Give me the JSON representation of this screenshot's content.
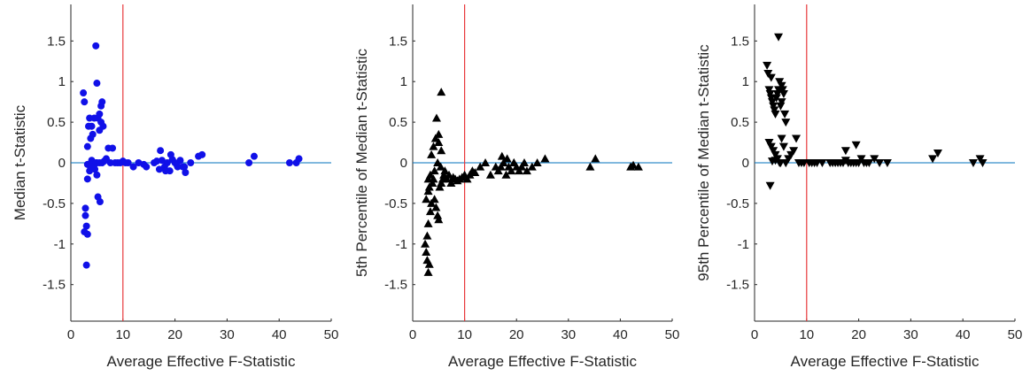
{
  "colors": {
    "zero_line": "#0072BD",
    "threshold_line": "#E8393B",
    "panel1_markers": "#1010E8",
    "panel2_markers": "#000000",
    "panel3_markers": "#000000",
    "axis": "#262626"
  },
  "chart_data": [
    {
      "type": "scatter",
      "marker": "circle",
      "xlabel": "Average Effective F-Statistic",
      "ylabel": "Median t-Statistic",
      "xlim": [
        0,
        50
      ],
      "ylim": [
        -1.95,
        1.95
      ],
      "xticks": [
        "0",
        "10",
        "20",
        "30",
        "40",
        "50"
      ],
      "yticks": [
        "-1.5",
        "-1",
        "-0.5",
        "0",
        "0.5",
        "1",
        "1.5"
      ],
      "hline_y": 0,
      "vline_x": 10,
      "x": [
        2.4,
        2.6,
        2.8,
        3.0,
        3.2,
        3.0,
        2.8,
        2.6,
        3.4,
        3.6,
        3.8,
        3.2,
        4.0,
        4.2,
        4.5,
        4.8,
        5.0,
        5.2,
        5.5,
        5.8,
        6.0,
        6.2,
        5.8,
        5.5,
        5.0,
        4.4,
        3.6,
        3.2,
        4.6,
        5.0,
        5.2,
        5.6,
        6.0,
        6.4,
        6.8,
        7.2,
        7.6,
        8.0,
        8.5,
        9.0,
        9.5,
        10.0,
        10.5,
        11.0,
        12.0,
        13.0,
        14.0,
        14.5,
        16.0,
        17.0,
        17.5,
        18.0,
        18.5,
        19.0,
        19.5,
        20.0,
        20.5,
        21.0,
        21.5,
        22.0,
        23.0,
        16.5,
        17.2,
        18.2,
        19.2,
        20.4,
        21.8,
        24.5,
        25.2,
        34.2,
        35.2,
        42.0,
        43.3,
        43.8,
        3.2,
        4.0,
        4.8,
        5.5,
        3.8
      ],
      "y": [
        0.86,
        0.75,
        -0.65,
        -0.78,
        -0.88,
        -1.26,
        -0.56,
        -0.85,
        0.45,
        0.55,
        0.3,
        0.2,
        0.45,
        0.35,
        0.55,
        1.44,
        0.98,
        0.55,
        0.6,
        0.7,
        0.75,
        0.45,
        0.5,
        0.4,
        0.0,
        -0.05,
        -0.1,
        -0.2,
        -0.08,
        -0.15,
        -0.42,
        -0.48,
        0.0,
        0.02,
        0.05,
        0.18,
        0.0,
        0.18,
        0.0,
        0.0,
        0.0,
        0.02,
        0.0,
        0.0,
        -0.05,
        0.0,
        -0.02,
        -0.05,
        0.0,
        -0.08,
        0.03,
        -0.05,
        0.0,
        -0.1,
        0.04,
        0.0,
        -0.05,
        0.03,
        -0.05,
        -0.12,
        0.0,
        0.02,
        0.15,
        -0.1,
        0.1,
        -0.03,
        -0.05,
        0.08,
        0.1,
        0.0,
        0.08,
        0.0,
        0.0,
        0.05,
        -0.02,
        0.03,
        0.0,
        0.0,
        -0.05
      ]
    },
    {
      "type": "scatter",
      "marker": "triangle-up",
      "xlabel": "Average Effective F-Statistic",
      "ylabel": "5th Percentile of Median t-Statistic",
      "xlim": [
        0,
        50
      ],
      "ylim": [
        -1.95,
        1.95
      ],
      "xticks": [
        "0",
        "10",
        "20",
        "30",
        "40",
        "50"
      ],
      "yticks": [
        "-1.5",
        "-1",
        "-0.5",
        "0",
        "0.5",
        "1",
        "1.5"
      ],
      "hline_y": 0,
      "vline_x": 10,
      "x": [
        2.4,
        2.6,
        2.8,
        3.0,
        3.2,
        2.8,
        3.0,
        3.4,
        3.6,
        2.6,
        3.0,
        3.2,
        3.8,
        4.0,
        4.2,
        4.5,
        4.8,
        5.0,
        5.2,
        5.5,
        5.8,
        6.0,
        3.6,
        4.0,
        4.4,
        5.0,
        5.5,
        3.0,
        3.4,
        4.2,
        4.8,
        5.4,
        6.2,
        6.6,
        7.0,
        7.4,
        7.8,
        8.2,
        8.6,
        9.0,
        9.5,
        10.0,
        10.5,
        11.0,
        11.5,
        12.0,
        13.0,
        14.0,
        15.0,
        16.0,
        16.5,
        17.0,
        17.5,
        18.0,
        18.5,
        19.0,
        19.5,
        20.0,
        20.5,
        21.0,
        21.5,
        22.0,
        23.0,
        24.0,
        25.5,
        17.2,
        18.2,
        19.5,
        34.2,
        35.2,
        42.0,
        42.5,
        43.5,
        5.5,
        4.6,
        5.0
      ],
      "y": [
        -1.0,
        -1.1,
        -1.2,
        -1.35,
        -1.25,
        -0.9,
        -0.75,
        -0.6,
        -0.5,
        -0.45,
        -0.35,
        -0.3,
        -0.25,
        -0.2,
        -0.45,
        -0.55,
        -0.65,
        -0.7,
        -0.3,
        -0.25,
        -0.2,
        -0.15,
        0.1,
        0.2,
        0.3,
        0.35,
        0.15,
        -0.2,
        -0.15,
        -0.1,
        0.0,
        -0.05,
        -0.1,
        -0.2,
        -0.15,
        -0.25,
        -0.18,
        -0.2,
        -0.22,
        -0.2,
        -0.18,
        -0.15,
        -0.2,
        -0.15,
        -0.1,
        -0.12,
        -0.05,
        0.0,
        -0.15,
        -0.05,
        -0.1,
        -0.05,
        0.0,
        -0.15,
        -0.05,
        -0.1,
        0.0,
        -0.05,
        -0.1,
        -0.05,
        0.0,
        -0.1,
        -0.05,
        0.0,
        0.05,
        0.08,
        0.05,
        0.0,
        -0.05,
        0.05,
        -0.05,
        -0.03,
        -0.05,
        0.87,
        0.55,
        0.25
      ]
    },
    {
      "type": "scatter",
      "marker": "triangle-down",
      "xlabel": "Average Effective F-Statistic",
      "ylabel": "95th Percentile of Median t-Statistic",
      "xlim": [
        0,
        50
      ],
      "ylim": [
        -1.95,
        1.95
      ],
      "xticks": [
        "0",
        "10",
        "20",
        "30",
        "40",
        "50"
      ],
      "yticks": [
        "-1.5",
        "-1",
        "-0.5",
        "0",
        "0.5",
        "1",
        "1.5"
      ],
      "hline_y": 0,
      "vline_x": 10,
      "x": [
        2.4,
        2.6,
        2.8,
        3.0,
        3.2,
        3.4,
        3.6,
        3.8,
        4.0,
        4.2,
        4.4,
        4.6,
        4.8,
        5.0,
        5.2,
        5.4,
        5.6,
        5.8,
        6.0,
        2.8,
        3.2,
        3.6,
        4.0,
        4.4,
        4.8,
        5.2,
        5.6,
        6.0,
        6.5,
        7.0,
        7.5,
        8.0,
        8.5,
        9.0,
        9.5,
        3.0,
        3.4,
        4.0,
        5.0,
        6.0,
        10.5,
        11.0,
        11.5,
        12.0,
        13.0,
        14.5,
        15.0,
        15.5,
        16.0,
        16.5,
        17.0,
        17.5,
        18.0,
        18.5,
        19.0,
        19.5,
        20.0,
        20.5,
        21.0,
        21.5,
        22.0,
        23.0,
        24.0,
        25.5,
        17.5,
        19.5,
        34.2,
        35.2,
        42.0,
        43.3,
        43.8,
        3.2,
        4.6,
        5.2
      ],
      "y": [
        1.2,
        1.1,
        0.9,
        0.85,
        0.8,
        0.75,
        0.7,
        0.65,
        0.6,
        0.8,
        0.85,
        0.9,
        1.0,
        0.7,
        0.75,
        0.9,
        0.85,
        0.6,
        0.5,
        0.25,
        0.2,
        0.15,
        0.1,
        0.05,
        0.0,
        0.3,
        0.2,
        0.0,
        0.05,
        0.1,
        0.15,
        0.3,
        0.0,
        0.0,
        0.0,
        -0.28,
        0.02,
        0.03,
        0.0,
        0.0,
        0.0,
        0.0,
        0.0,
        0.0,
        0.0,
        0.0,
        0.0,
        0.0,
        0.0,
        0.0,
        0.0,
        0.03,
        0.0,
        0.0,
        0.0,
        0.0,
        0.0,
        0.05,
        0.0,
        0.0,
        0.0,
        0.05,
        0.0,
        0.0,
        0.15,
        0.22,
        0.05,
        0.12,
        0.0,
        0.05,
        0.0,
        1.05,
        1.55,
        0.95
      ]
    }
  ]
}
